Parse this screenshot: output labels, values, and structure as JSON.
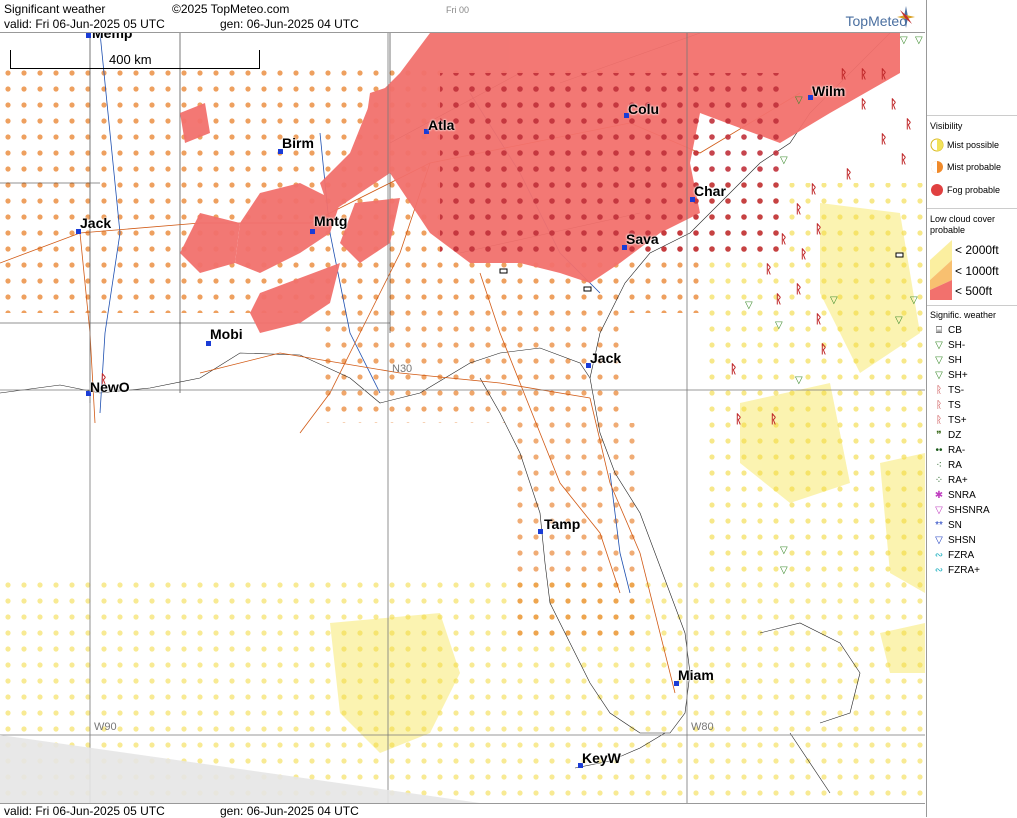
{
  "header": {
    "title": "Significant weather",
    "copyright": "©2025 TopMeteo.com",
    "valid": "valid:  Fri  06-Jun-2025  05 UTC",
    "gen": "gen: 06-Jun-2025 04 UTC",
    "frame": "Fri 00",
    "brand": "TopMeteo"
  },
  "footer": {
    "valid": "valid:  Fri  06-Jun-2025  05 UTC",
    "gen": "gen: 06-Jun-2025 04 UTC"
  },
  "map": {
    "scale_label": "400 km",
    "cities": [
      {
        "name": "Atla"
      },
      {
        "name": "Birm"
      },
      {
        "name": "Colu"
      },
      {
        "name": "Char"
      },
      {
        "name": "Wilm"
      },
      {
        "name": "Jack"
      },
      {
        "name": "Mntg"
      },
      {
        "name": "Sava"
      },
      {
        "name": "Mobi"
      },
      {
        "name": "NewO"
      },
      {
        "name": "Jack"
      },
      {
        "name": "Tamp"
      },
      {
        "name": "Miam"
      },
      {
        "name": "KeyW"
      },
      {
        "name": "Memp"
      }
    ],
    "grid_labels": [
      "N30",
      "W90",
      "W80"
    ]
  },
  "legend": {
    "visibility_title": "Visibility",
    "mist_possible": "Mist possible",
    "mist_probable": "Mist probable",
    "fog_probable": "Fog probable",
    "cloud_title": "Low cloud cover probable",
    "cloud_2000": "< 2000ft",
    "cloud_1000": "< 1000ft",
    "cloud_500": "<   500ft",
    "sigwx_title": "Signific. weather",
    "items": [
      "CB",
      "SH-",
      "SH",
      "SH+",
      "TS-",
      "TS",
      "TS+",
      "DZ",
      "RA-",
      "RA",
      "RA+",
      "SNRA",
      "SHSNRA",
      "SN",
      "SHSN",
      "FZRA",
      "FZRA+"
    ],
    "colors": {
      "mist_possible": "#f2e25a",
      "mist_probable": "#f08a2a",
      "fog": "#e04040",
      "ts": "#c0282a",
      "sh": "#3a8a2a"
    }
  }
}
